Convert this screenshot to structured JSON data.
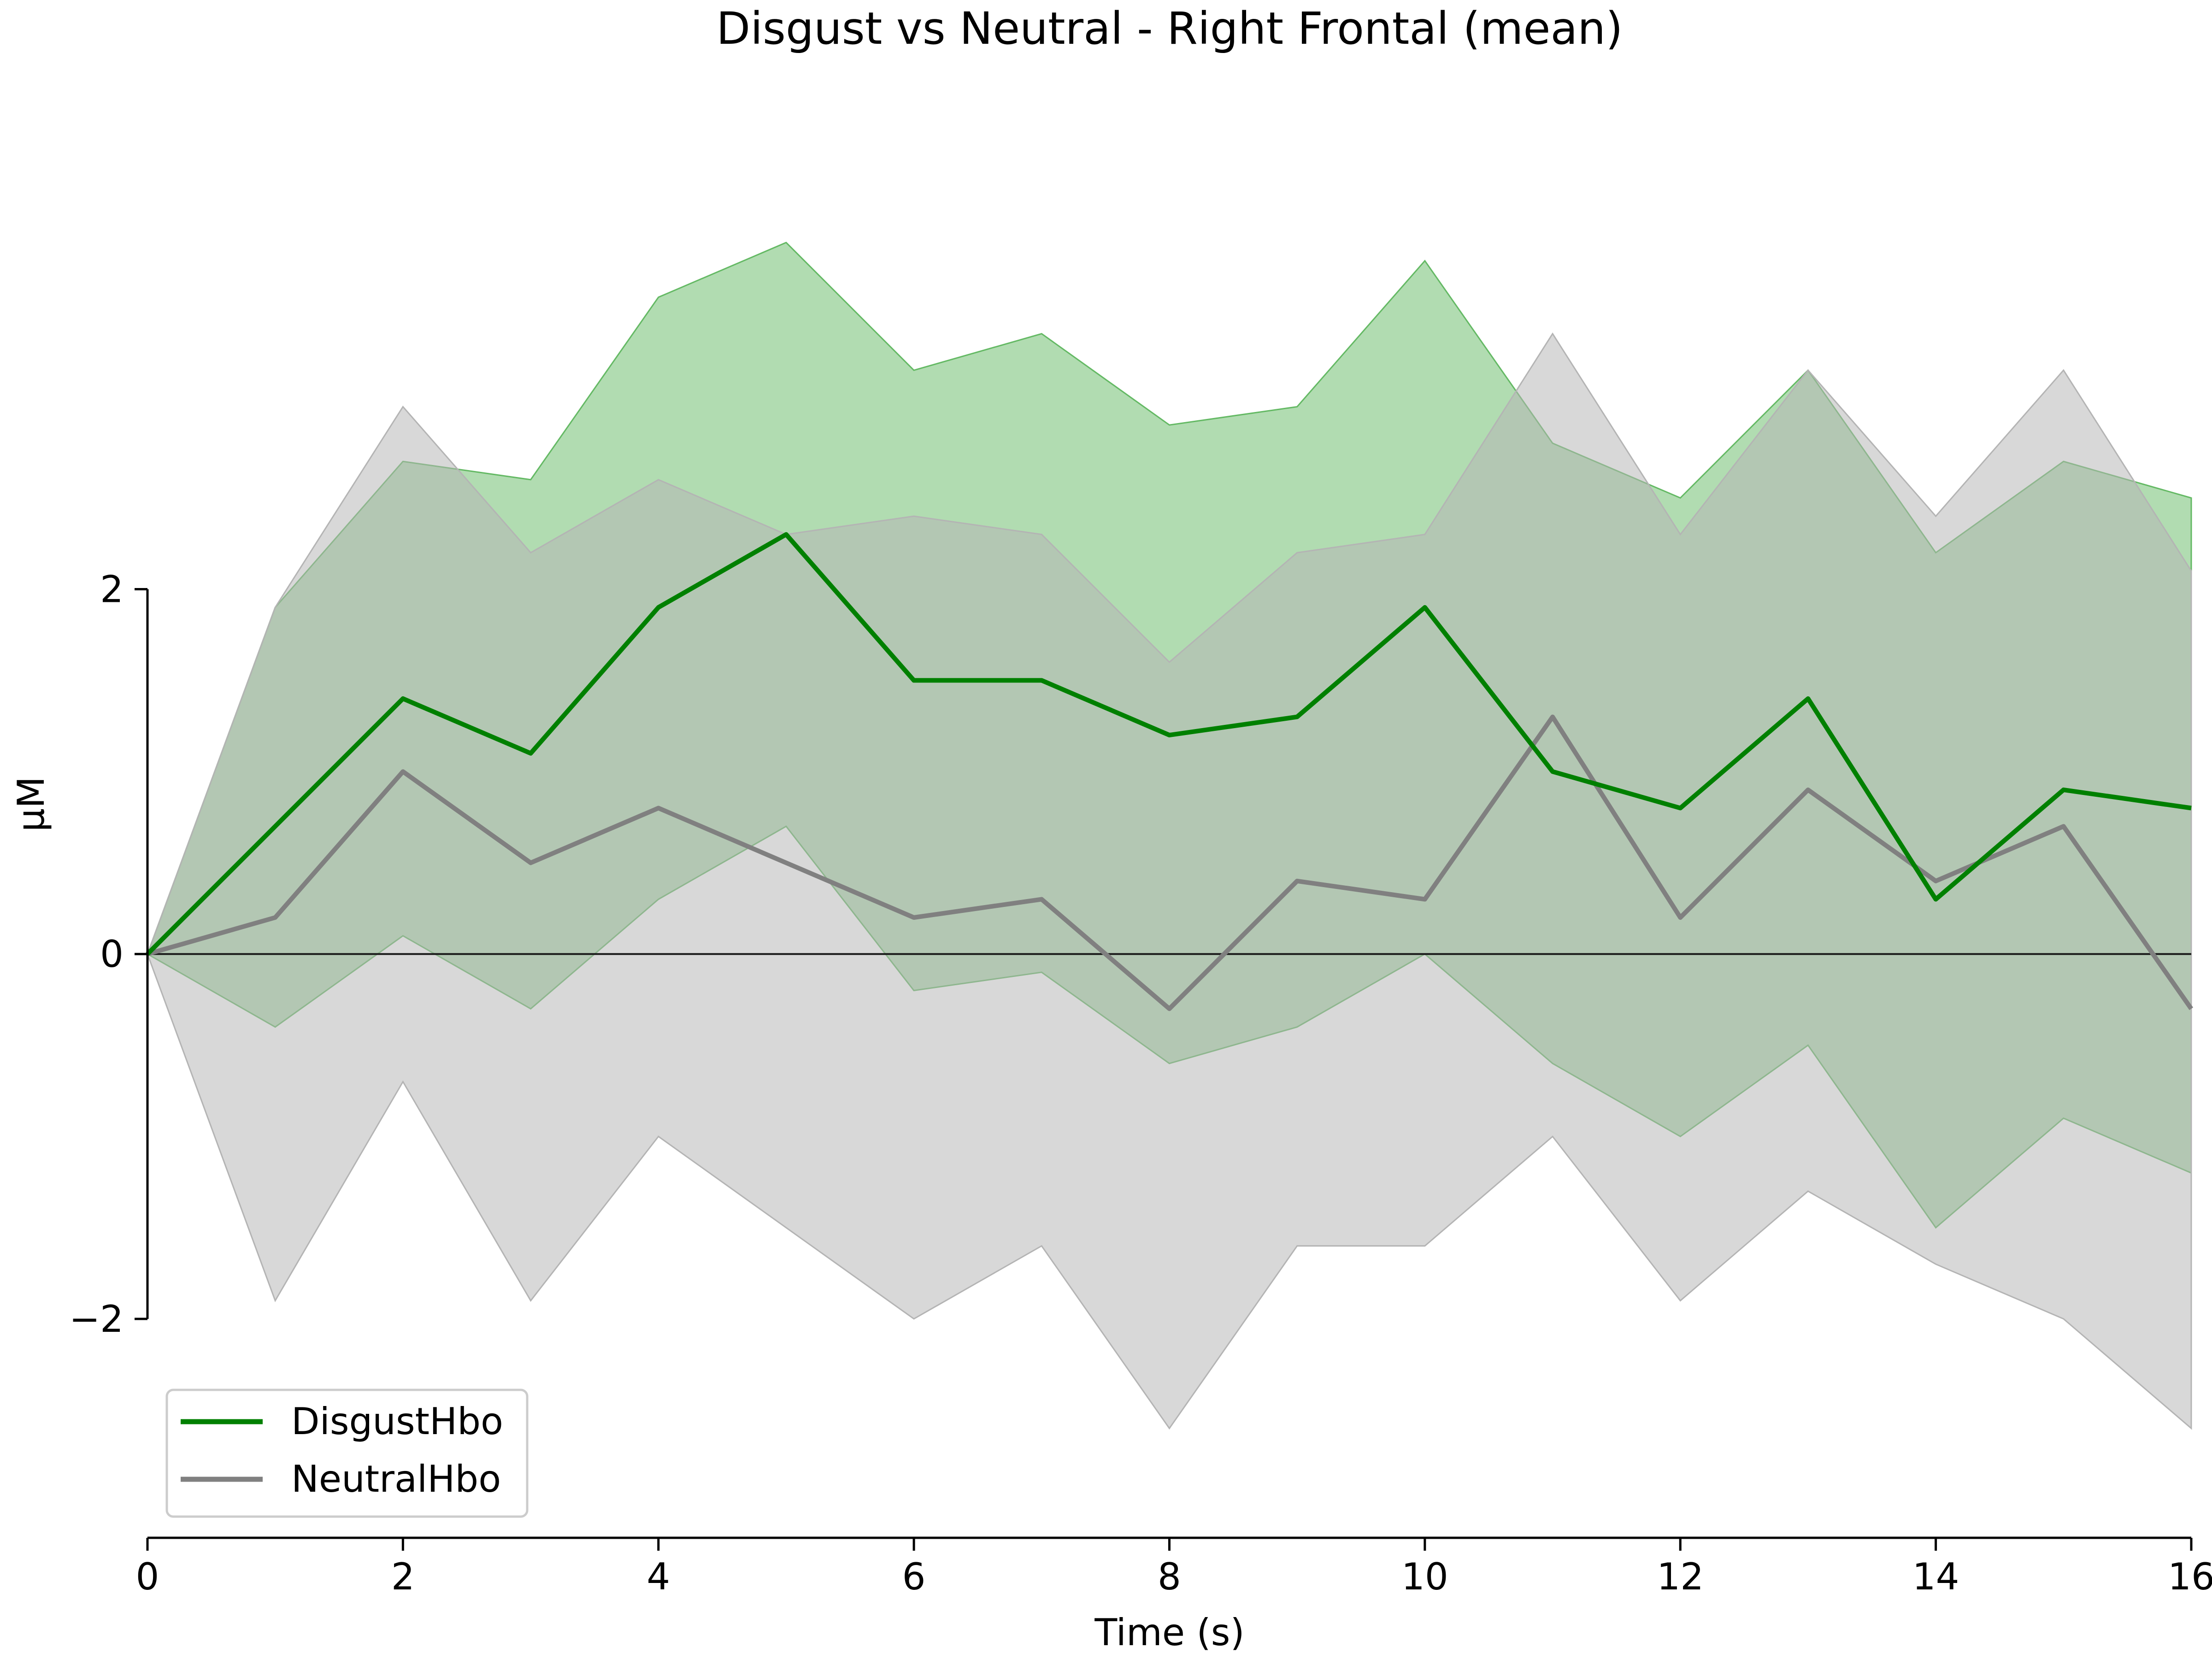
{
  "chart_data": {
    "type": "line",
    "title": "Disgust vs Neutral - Right Frontal (mean)",
    "xlabel": "Time (s)",
    "ylabel": "µM",
    "xlim": [
      0,
      16
    ],
    "ylim": [
      -3.2,
      4.8
    ],
    "x_ticks": [
      0,
      2,
      4,
      6,
      8,
      10,
      12,
      14,
      16
    ],
    "x_tick_labels": [
      "0",
      "2",
      "4",
      "6",
      "8",
      "10",
      "12",
      "14",
      "16"
    ],
    "y_ticks": [
      -2,
      0,
      2
    ],
    "y_tick_labels": [
      "−2",
      "0",
      "2"
    ],
    "y_axis_extent": [
      -2,
      2
    ],
    "zero_line": true,
    "grid": false,
    "legend_position": "lower-left",
    "series": [
      {
        "name": "DisgustHbo",
        "color": "#008000",
        "band_color": "#64b964",
        "x": [
          0,
          1,
          2,
          3,
          4,
          5,
          6,
          7,
          8,
          9,
          10,
          11,
          12,
          13,
          14,
          15,
          16
        ],
        "mean": [
          0.0,
          0.7,
          1.4,
          1.1,
          1.9,
          2.3,
          1.5,
          1.5,
          1.2,
          1.3,
          1.9,
          1.0,
          0.8,
          1.4,
          0.3,
          0.9,
          0.8
        ],
        "upper": [
          0.0,
          1.9,
          2.7,
          2.6,
          3.6,
          3.9,
          3.2,
          3.4,
          2.9,
          3.0,
          3.8,
          2.8,
          2.5,
          3.2,
          2.2,
          2.7,
          2.5
        ],
        "lower": [
          0.0,
          -0.4,
          0.1,
          -0.3,
          0.3,
          0.7,
          -0.2,
          -0.1,
          -0.6,
          -0.4,
          0.0,
          -0.6,
          -1.0,
          -0.5,
          -1.5,
          -0.9,
          -1.2
        ]
      },
      {
        "name": "NeutralHbo",
        "color": "#808080",
        "band_color": "#b4b4b4",
        "x": [
          0,
          1,
          2,
          3,
          4,
          5,
          6,
          7,
          8,
          9,
          10,
          11,
          12,
          13,
          14,
          15,
          16
        ],
        "mean": [
          0.0,
          0.2,
          1.0,
          0.5,
          0.8,
          0.5,
          0.2,
          0.3,
          -0.3,
          0.4,
          0.3,
          1.3,
          0.2,
          0.9,
          0.4,
          0.7,
          -0.3
        ],
        "upper": [
          0.0,
          1.9,
          3.0,
          2.2,
          2.6,
          2.3,
          2.4,
          2.3,
          1.6,
          2.2,
          2.3,
          3.4,
          2.3,
          3.2,
          2.4,
          3.2,
          2.1
        ],
        "lower": [
          0.0,
          -1.9,
          -0.7,
          -1.9,
          -1.0,
          -1.5,
          -2.0,
          -1.6,
          -2.6,
          -1.6,
          -1.6,
          -1.0,
          -1.9,
          -1.3,
          -1.7,
          -2.0,
          -2.6
        ]
      }
    ]
  }
}
